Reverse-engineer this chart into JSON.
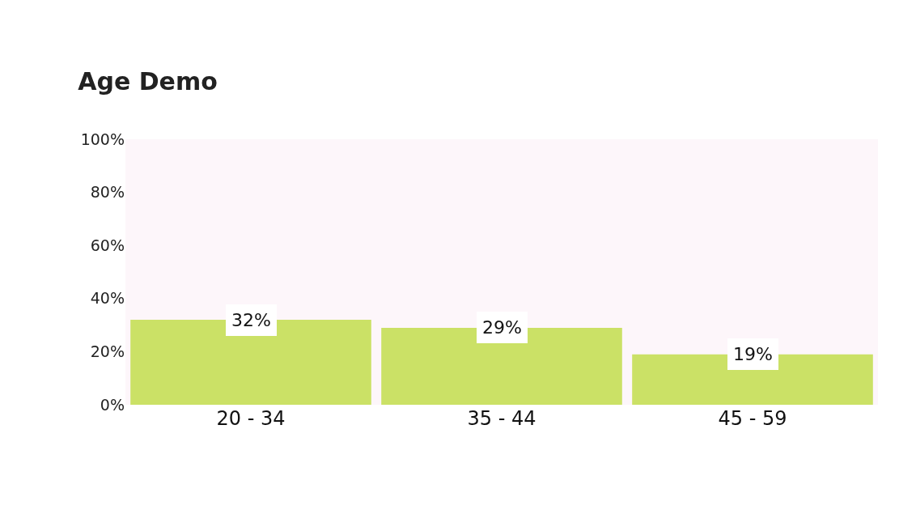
{
  "chart_data": {
    "type": "bar",
    "title": "Age Demo",
    "categories": [
      "20 - 34",
      "35 - 44",
      "45 - 59"
    ],
    "values": [
      32,
      29,
      19
    ],
    "color": "#cbe166",
    "value_labels": [
      "32%",
      "29%",
      "19%"
    ],
    "ylim": [
      0,
      100
    ],
    "yticks": [
      {
        "value": 0,
        "label": "0%"
      },
      {
        "value": 20,
        "label": "20%"
      },
      {
        "value": 40,
        "label": "40%"
      },
      {
        "value": 60,
        "label": "60%"
      },
      {
        "value": 80,
        "label": "80%"
      },
      {
        "value": 100,
        "label": "100%"
      }
    ],
    "grid": false
  }
}
